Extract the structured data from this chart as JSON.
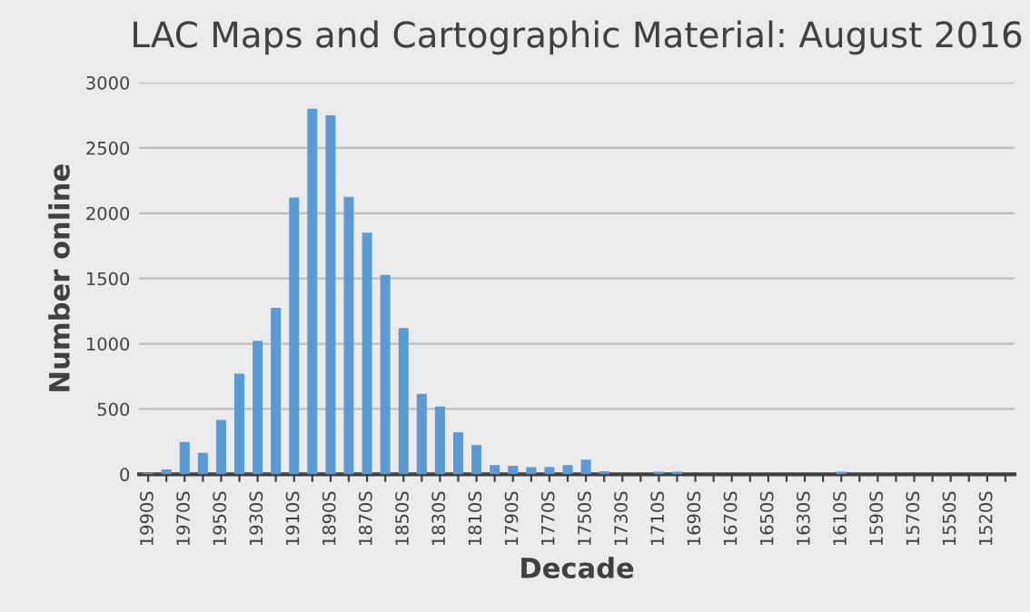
{
  "chart_data": {
    "type": "bar",
    "title": "LAC Maps and Cartographic Material: August 2016",
    "xlabel": "Decade",
    "ylabel": "Number online",
    "categories": [
      "1990S",
      null,
      "1970S",
      null,
      "1950S",
      null,
      "1930S",
      null,
      "1910S",
      null,
      "1890S",
      null,
      "1870S",
      null,
      "1850S",
      null,
      "1830S",
      null,
      "1810S",
      null,
      "1790S",
      null,
      "1770S",
      null,
      "1750S",
      null,
      "1730S",
      null,
      "1710S",
      null,
      "1690S",
      null,
      "1670S",
      null,
      "1650S",
      null,
      "1630S",
      null,
      "1610S",
      null,
      "1590S",
      null,
      "1570S",
      null,
      "1550S",
      null,
      "1520S",
      null
    ],
    "values": [
      10,
      37,
      248,
      164,
      416,
      771,
      1023,
      1276,
      2120,
      2800,
      2750,
      2126,
      1850,
      1528,
      1121,
      617,
      519,
      322,
      224,
      70,
      65,
      55,
      56,
      70,
      112,
      23,
      0,
      0,
      19,
      19,
      0,
      0,
      0,
      0,
      0,
      0,
      0,
      0,
      19,
      0,
      0,
      0,
      0,
      0,
      0,
      0,
      0,
      0
    ],
    "color": "#5b9bd5",
    "ylim": [
      0,
      3000
    ],
    "yticks": [
      0,
      500,
      1000,
      1500,
      2000,
      2500,
      3000
    ],
    "grid": "y"
  }
}
